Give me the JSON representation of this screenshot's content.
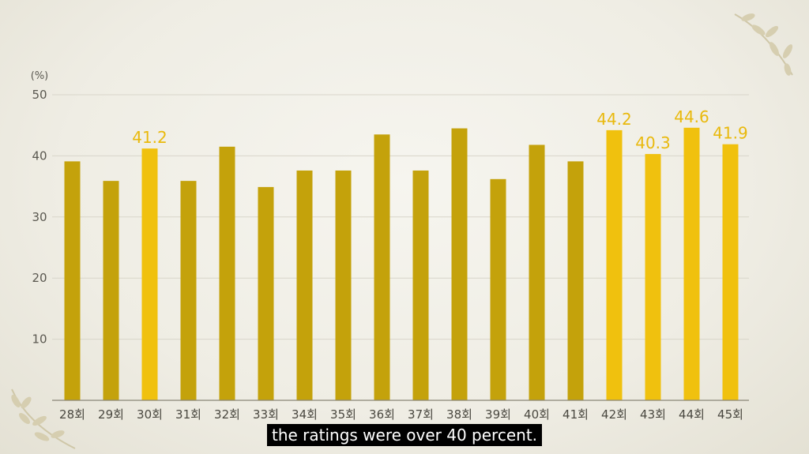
{
  "chart_data": {
    "type": "bar",
    "unit_label": "(%)",
    "categories": [
      "28회",
      "29회",
      "30회",
      "31회",
      "32회",
      "33회",
      "34회",
      "35회",
      "36회",
      "37회",
      "38회",
      "39회",
      "40회",
      "41회",
      "42회",
      "43회",
      "44회",
      "45회"
    ],
    "values": [
      39.1,
      35.9,
      41.2,
      35.9,
      41.5,
      34.9,
      37.6,
      37.6,
      43.5,
      37.6,
      44.5,
      36.2,
      41.8,
      39.1,
      44.2,
      40.3,
      44.6,
      41.9
    ],
    "labels": [
      "",
      "",
      "41.2",
      "",
      "",
      "",
      "",
      "",
      "",
      "",
      "",
      "",
      "",
      "",
      "44.2",
      "40.3",
      "44.6",
      "41.9"
    ],
    "highlighted": [
      false,
      false,
      true,
      false,
      false,
      false,
      false,
      false,
      false,
      false,
      false,
      false,
      false,
      false,
      true,
      true,
      true,
      true
    ],
    "ylim": [
      0,
      50
    ],
    "yticks": [
      10,
      20,
      30,
      40,
      50
    ],
    "grid": true,
    "colors": {
      "normal_bar": "#c4a20b",
      "highlight_bar": "#f0c10e",
      "label": "#e9b90c"
    }
  },
  "caption": "the ratings were over 40 percent."
}
